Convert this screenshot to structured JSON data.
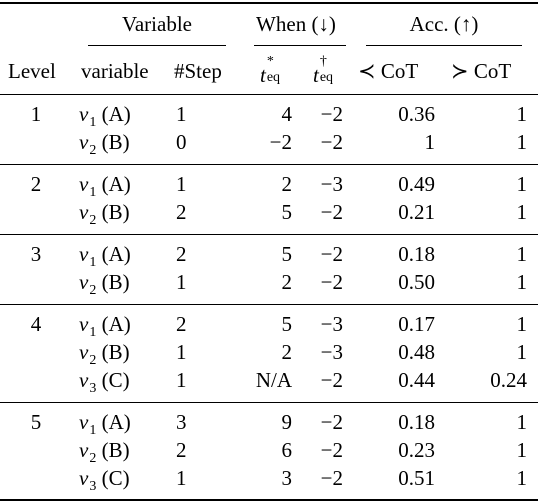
{
  "table": {
    "group_headers": {
      "variable": "Variable",
      "when": "When (↓)",
      "acc": "Acc. (↑)"
    },
    "columns": {
      "level": "Level",
      "variable": "variable",
      "step": "#Step",
      "t_star": {
        "base": "t",
        "sup": "*",
        "sub": "eq"
      },
      "t_dagger": {
        "base": "t",
        "sup": "†",
        "sub": "eq"
      },
      "acc_prec": "≺ CoT",
      "acc_succ": "≻ CoT"
    },
    "groups": [
      {
        "level": "1",
        "rows": [
          {
            "var": "v",
            "idx": "1",
            "tag": "(A)",
            "step": "1",
            "t_star": "4",
            "t_dagger": "−2",
            "acc_prec": "0.36",
            "acc_succ": "1"
          },
          {
            "var": "v",
            "idx": "2",
            "tag": "(B)",
            "step": "0",
            "t_star": "−2",
            "t_dagger": "−2",
            "acc_prec": "1",
            "acc_succ": "1"
          }
        ]
      },
      {
        "level": "2",
        "rows": [
          {
            "var": "v",
            "idx": "1",
            "tag": "(A)",
            "step": "1",
            "t_star": "2",
            "t_dagger": "−3",
            "acc_prec": "0.49",
            "acc_succ": "1"
          },
          {
            "var": "v",
            "idx": "2",
            "tag": "(B)",
            "step": "2",
            "t_star": "5",
            "t_dagger": "−2",
            "acc_prec": "0.21",
            "acc_succ": "1"
          }
        ]
      },
      {
        "level": "3",
        "rows": [
          {
            "var": "v",
            "idx": "1",
            "tag": "(A)",
            "step": "2",
            "t_star": "5",
            "t_dagger": "−2",
            "acc_prec": "0.18",
            "acc_succ": "1"
          },
          {
            "var": "v",
            "idx": "2",
            "tag": "(B)",
            "step": "1",
            "t_star": "2",
            "t_dagger": "−2",
            "acc_prec": "0.50",
            "acc_succ": "1"
          }
        ]
      },
      {
        "level": "4",
        "rows": [
          {
            "var": "v",
            "idx": "1",
            "tag": "(A)",
            "step": "2",
            "t_star": "5",
            "t_dagger": "−3",
            "acc_prec": "0.17",
            "acc_succ": "1"
          },
          {
            "var": "v",
            "idx": "2",
            "tag": "(B)",
            "step": "1",
            "t_star": "2",
            "t_dagger": "−3",
            "acc_prec": "0.48",
            "acc_succ": "1"
          },
          {
            "var": "v",
            "idx": "3",
            "tag": "(C)",
            "step": "1",
            "t_star": "N/A",
            "t_dagger": "−2",
            "acc_prec": "0.44",
            "acc_succ": "0.24"
          }
        ]
      },
      {
        "level": "5",
        "rows": [
          {
            "var": "v",
            "idx": "1",
            "tag": "(A)",
            "step": "3",
            "t_star": "9",
            "t_dagger": "−2",
            "acc_prec": "0.18",
            "acc_succ": "1"
          },
          {
            "var": "v",
            "idx": "2",
            "tag": "(B)",
            "step": "2",
            "t_star": "6",
            "t_dagger": "−2",
            "acc_prec": "0.23",
            "acc_succ": "1"
          },
          {
            "var": "v",
            "idx": "3",
            "tag": "(C)",
            "step": "1",
            "t_star": "3",
            "t_dagger": "−2",
            "acc_prec": "0.51",
            "acc_succ": "1"
          }
        ]
      }
    ]
  }
}
